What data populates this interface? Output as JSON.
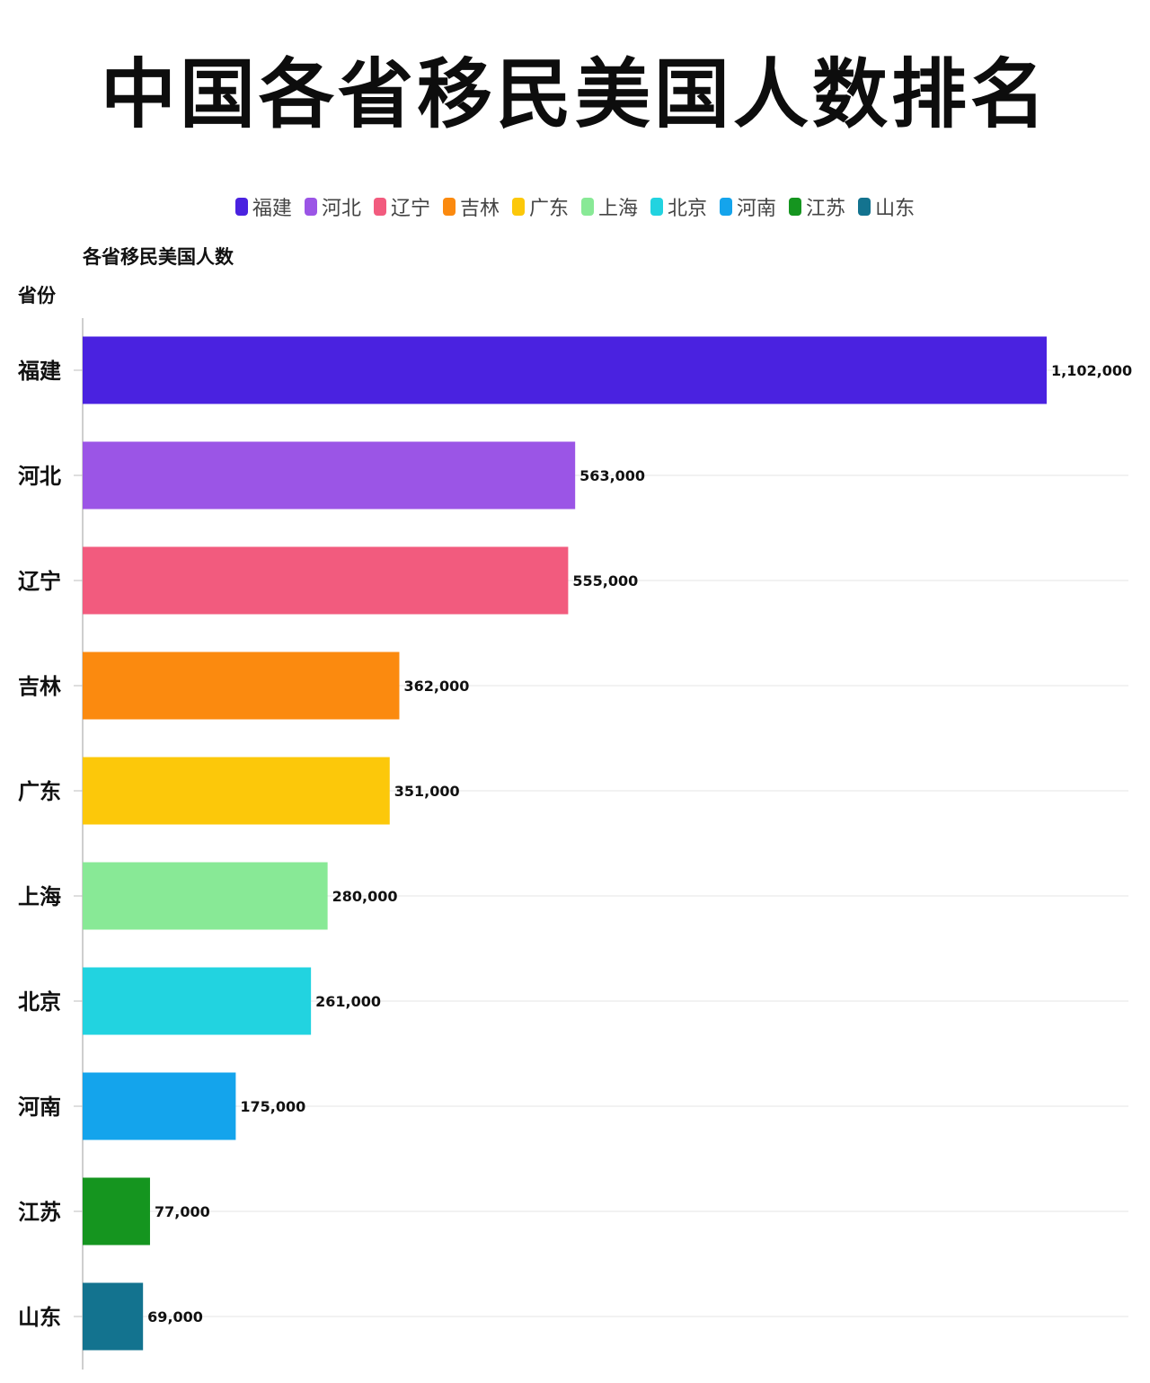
{
  "title": "中国各省移民美国人数排名",
  "chart_data": {
    "type": "bar",
    "orientation": "horizontal",
    "title": "中国各省移民美国人数排名",
    "subtitle": "各省移民美国人数",
    "ylabel": "省份",
    "xlabel": "",
    "xlim": [
      0,
      1135000
    ],
    "grid": true,
    "legend_position": "top",
    "categories": [
      "福建",
      "河北",
      "辽宁",
      "吉林",
      "广东",
      "上海",
      "北京",
      "河南",
      "江苏",
      "山东"
    ],
    "values": [
      1102000,
      563000,
      555000,
      362000,
      351000,
      280000,
      261000,
      175000,
      77000,
      69000
    ],
    "value_labels": [
      "1,102,000",
      "563,000",
      "555,000",
      "362,000",
      "351,000",
      "280,000",
      "261,000",
      "175,000",
      "77,000",
      "69,000"
    ],
    "colors": [
      "#4a22e0",
      "#9b55e6",
      "#f25b7e",
      "#fb8a0f",
      "#fcc80a",
      "#88e996",
      "#22d3e0",
      "#14a4ec",
      "#15951f",
      "#13738f"
    ]
  }
}
